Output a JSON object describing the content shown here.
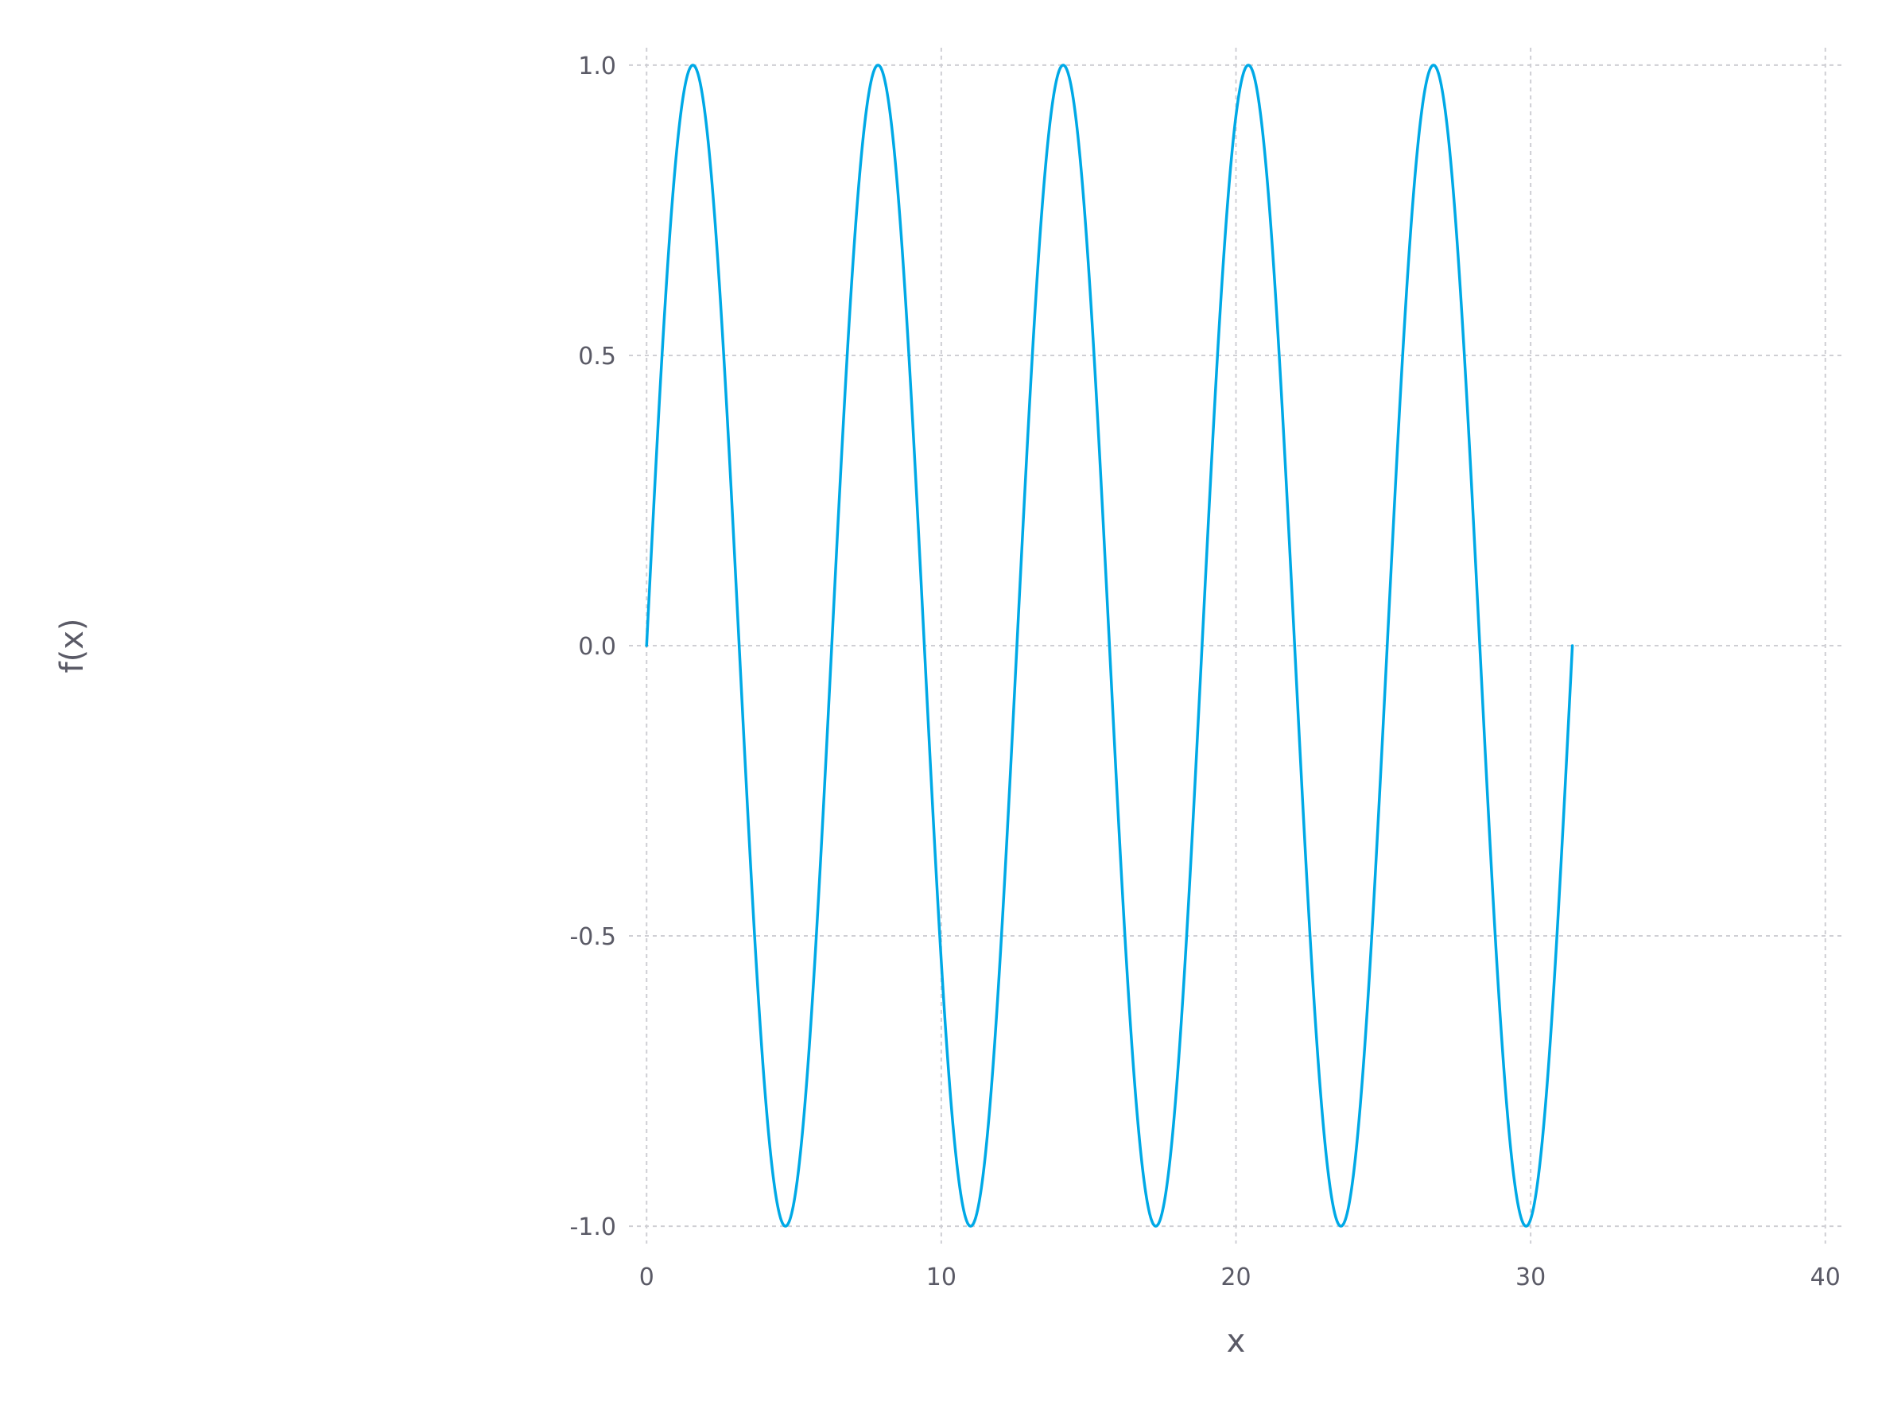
{
  "chart_data": {
    "type": "line",
    "title": "",
    "xlabel": "x",
    "ylabel": "f(x)",
    "xlim": [
      -0.6,
      40.6
    ],
    "ylim": [
      -1.03,
      1.03
    ],
    "xticks": [
      0,
      10,
      20,
      30,
      40
    ],
    "xtick_labels": [
      "0",
      "10",
      "20",
      "30",
      "40"
    ],
    "yticks": [
      -1.0,
      -0.5,
      0.0,
      0.5,
      1.0
    ],
    "ytick_labels": [
      "-1.0",
      "-0.5",
      "0.0",
      "0.5",
      "1.0"
    ],
    "grid": true,
    "legend": "none",
    "series": [
      {
        "function": "sin(x)",
        "x_range": [
          0,
          31.4159
        ],
        "peaks": [
          [
            1.571,
            1.0
          ],
          [
            7.854,
            1.0
          ],
          [
            14.137,
            1.0
          ],
          [
            20.42,
            1.0
          ],
          [
            26.704,
            1.0
          ]
        ],
        "troughs": [
          [
            4.712,
            -1.0
          ],
          [
            10.996,
            -1.0
          ],
          [
            17.279,
            -1.0
          ],
          [
            23.562,
            -1.0
          ],
          [
            29.845,
            -1.0
          ]
        ],
        "zero_crossings": [
          0.0,
          3.1416,
          6.2832,
          9.4248,
          12.5664,
          15.708,
          18.8496,
          21.9911,
          25.1327,
          28.2743,
          31.4159
        ],
        "color": "#00a9e6"
      }
    ]
  }
}
